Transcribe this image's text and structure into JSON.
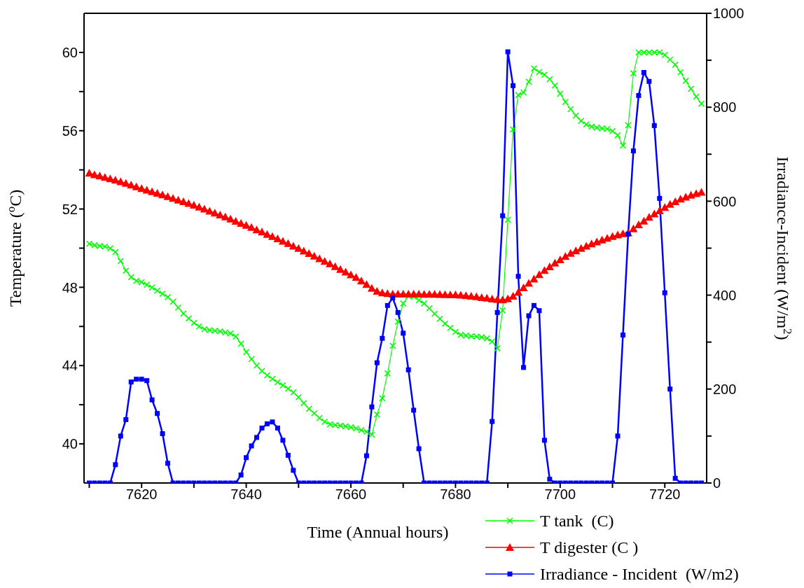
{
  "chart_data": {
    "type": "line",
    "xlabel": "Time (Annual hours)",
    "ylabel": "Temperature ($^{o}$C)",
    "y2label": "Irradiance-Incident (W/m$^{2}$)",
    "x": [
      7610,
      7611,
      7612,
      7613,
      7614,
      7615,
      7616,
      7617,
      7618,
      7619,
      7620,
      7621,
      7622,
      7623,
      7624,
      7625,
      7626,
      7627,
      7628,
      7629,
      7630,
      7631,
      7632,
      7633,
      7634,
      7635,
      7636,
      7637,
      7638,
      7639,
      7640,
      7641,
      7642,
      7643,
      7644,
      7645,
      7646,
      7647,
      7648,
      7649,
      7650,
      7651,
      7652,
      7653,
      7654,
      7655,
      7656,
      7657,
      7658,
      7659,
      7660,
      7661,
      7662,
      7663,
      7664,
      7665,
      7666,
      7667,
      7668,
      7669,
      7670,
      7671,
      7672,
      7673,
      7674,
      7675,
      7676,
      7677,
      7678,
      7679,
      7680,
      7681,
      7682,
      7683,
      7684,
      7685,
      7686,
      7687,
      7688,
      7689,
      7690,
      7691,
      7692,
      7693,
      7694,
      7695,
      7696,
      7697,
      7698,
      7699,
      7700,
      7701,
      7702,
      7703,
      7704,
      7705,
      7706,
      7707,
      7708,
      7709,
      7710,
      7711,
      7712,
      7713,
      7714,
      7715,
      7716,
      7717,
      7718,
      7719,
      7720,
      7721,
      7722,
      7723,
      7724,
      7725,
      7726,
      7727
    ],
    "series": [
      {
        "name": "T tank  (C)",
        "color": "#00ff00",
        "marker": "cross",
        "values": [
          50.22,
          50.15,
          50.11,
          50.08,
          49.99,
          49.8,
          49.34,
          48.85,
          48.52,
          48.33,
          48.26,
          48.13,
          47.99,
          47.83,
          47.67,
          47.5,
          47.26,
          46.96,
          46.66,
          46.41,
          46.18,
          46.0,
          45.86,
          45.81,
          45.78,
          45.75,
          45.69,
          45.64,
          45.48,
          45.12,
          44.69,
          44.33,
          44.0,
          43.72,
          43.5,
          43.32,
          43.15,
          42.99,
          42.82,
          42.63,
          42.38,
          42.08,
          41.79,
          41.56,
          41.32,
          41.13,
          41.0,
          40.96,
          40.93,
          40.9,
          40.85,
          40.79,
          40.7,
          40.62,
          40.47,
          41.5,
          42.33,
          43.6,
          45.01,
          46.24,
          47.17,
          47.55,
          47.52,
          47.34,
          47.17,
          46.92,
          46.65,
          46.39,
          46.14,
          45.92,
          45.72,
          45.57,
          45.53,
          45.5,
          45.48,
          45.45,
          45.39,
          45.23,
          44.88,
          46.82,
          51.45,
          56.06,
          57.82,
          57.95,
          58.5,
          59.18,
          59.0,
          58.86,
          58.63,
          58.31,
          57.89,
          57.47,
          57.1,
          56.77,
          56.5,
          56.32,
          56.21,
          56.16,
          56.12,
          56.09,
          55.98,
          55.77,
          55.24,
          56.28,
          58.93,
          60.0,
          60.0,
          60.0,
          60.0,
          60.0,
          59.87,
          59.63,
          59.37,
          58.99,
          58.55,
          58.14,
          57.74,
          57.38
        ]
      },
      {
        "name": "T digester (C )",
        "color": "#ff0000",
        "marker": "triangle",
        "values": [
          53.84,
          53.76,
          53.69,
          53.62,
          53.55,
          53.48,
          53.4,
          53.32,
          53.23,
          53.14,
          53.05,
          52.97,
          52.89,
          52.81,
          52.73,
          52.64,
          52.55,
          52.46,
          52.38,
          52.29,
          52.2,
          52.1,
          52.0,
          51.9,
          51.8,
          51.7,
          51.6,
          51.49,
          51.38,
          51.27,
          51.17,
          51.06,
          50.94,
          50.83,
          50.71,
          50.6,
          50.48,
          50.36,
          50.24,
          50.11,
          49.99,
          49.86,
          49.73,
          49.6,
          49.46,
          49.33,
          49.2,
          49.06,
          48.92,
          48.78,
          48.64,
          48.51,
          48.33,
          48.15,
          47.95,
          47.8,
          47.72,
          47.68,
          47.66,
          47.66,
          47.66,
          47.66,
          47.66,
          47.66,
          47.65,
          47.65,
          47.65,
          47.64,
          47.63,
          47.62,
          47.62,
          47.6,
          47.58,
          47.55,
          47.52,
          47.48,
          47.45,
          47.41,
          47.38,
          47.36,
          47.42,
          47.55,
          47.75,
          47.98,
          48.21,
          48.43,
          48.65,
          48.86,
          49.05,
          49.24,
          49.41,
          49.58,
          49.74,
          49.87,
          49.99,
          50.11,
          50.22,
          50.32,
          50.42,
          50.51,
          50.6,
          50.68,
          50.74,
          50.79,
          50.99,
          51.2,
          51.39,
          51.58,
          51.75,
          51.91,
          52.08,
          52.24,
          52.38,
          52.51,
          52.61,
          52.71,
          52.79,
          52.86
        ]
      },
      {
        "name": "Irradiance - Incident  (W/m2)",
        "color": "#0000ff",
        "marker": "square",
        "axis": "y2",
        "values": [
          0,
          0,
          0,
          0,
          0,
          39,
          100,
          135,
          215,
          221,
          221,
          218,
          177,
          148,
          105,
          42,
          0,
          0,
          0,
          0,
          0,
          0,
          0,
          0,
          0,
          0,
          0,
          0,
          0,
          17,
          54,
          79,
          97,
          117,
          126,
          130,
          117,
          91,
          59,
          27,
          0,
          0,
          0,
          0,
          0,
          0,
          0,
          0,
          0,
          0,
          0,
          0,
          0,
          58,
          162,
          256,
          308,
          378,
          394,
          363,
          319,
          241,
          155,
          73,
          0,
          0,
          0,
          0,
          0,
          0,
          0,
          0,
          0,
          0,
          0,
          0,
          0,
          131,
          363,
          569,
          918,
          846,
          440,
          246,
          356,
          378,
          367,
          91,
          8,
          0,
          0,
          0,
          0,
          0,
          0,
          0,
          0,
          0,
          0,
          0,
          0,
          100,
          315,
          530,
          707,
          825,
          874,
          855,
          761,
          606,
          405,
          200,
          10,
          0,
          0,
          0,
          0,
          0
        ]
      }
    ],
    "xlim": [
      7609,
      7728
    ],
    "xticks": [
      {
        "value": 7610,
        "label": null
      },
      7620,
      {
        "value": 7630,
        "label": null
      },
      7640,
      {
        "value": 7650,
        "label": null
      },
      7660,
      {
        "value": 7670,
        "label": null
      },
      7680,
      {
        "value": 7690,
        "label": null
      },
      7700,
      {
        "value": 7710,
        "label": null
      },
      7720
    ],
    "ylim": [
      38,
      62
    ],
    "yticks": [
      40,
      {
        "value": 42,
        "label": null
      },
      44,
      {
        "value": 46,
        "label": null
      },
      48,
      {
        "value": 50,
        "label": null
      },
      52,
      {
        "value": 54,
        "label": null
      },
      56,
      {
        "value": 58,
        "label": null
      },
      60
    ],
    "y2lim": [
      0,
      1000
    ],
    "y2ticks": [
      0,
      {
        "value": 100,
        "label": null
      },
      200,
      {
        "value": 300,
        "label": null
      },
      400,
      {
        "value": 500,
        "label": null
      },
      600,
      {
        "value": 700,
        "label": null
      },
      800,
      {
        "value": 900,
        "label": null
      },
      1000
    ],
    "grid": false,
    "legend": "bottom right",
    "line_style": "solid"
  }
}
